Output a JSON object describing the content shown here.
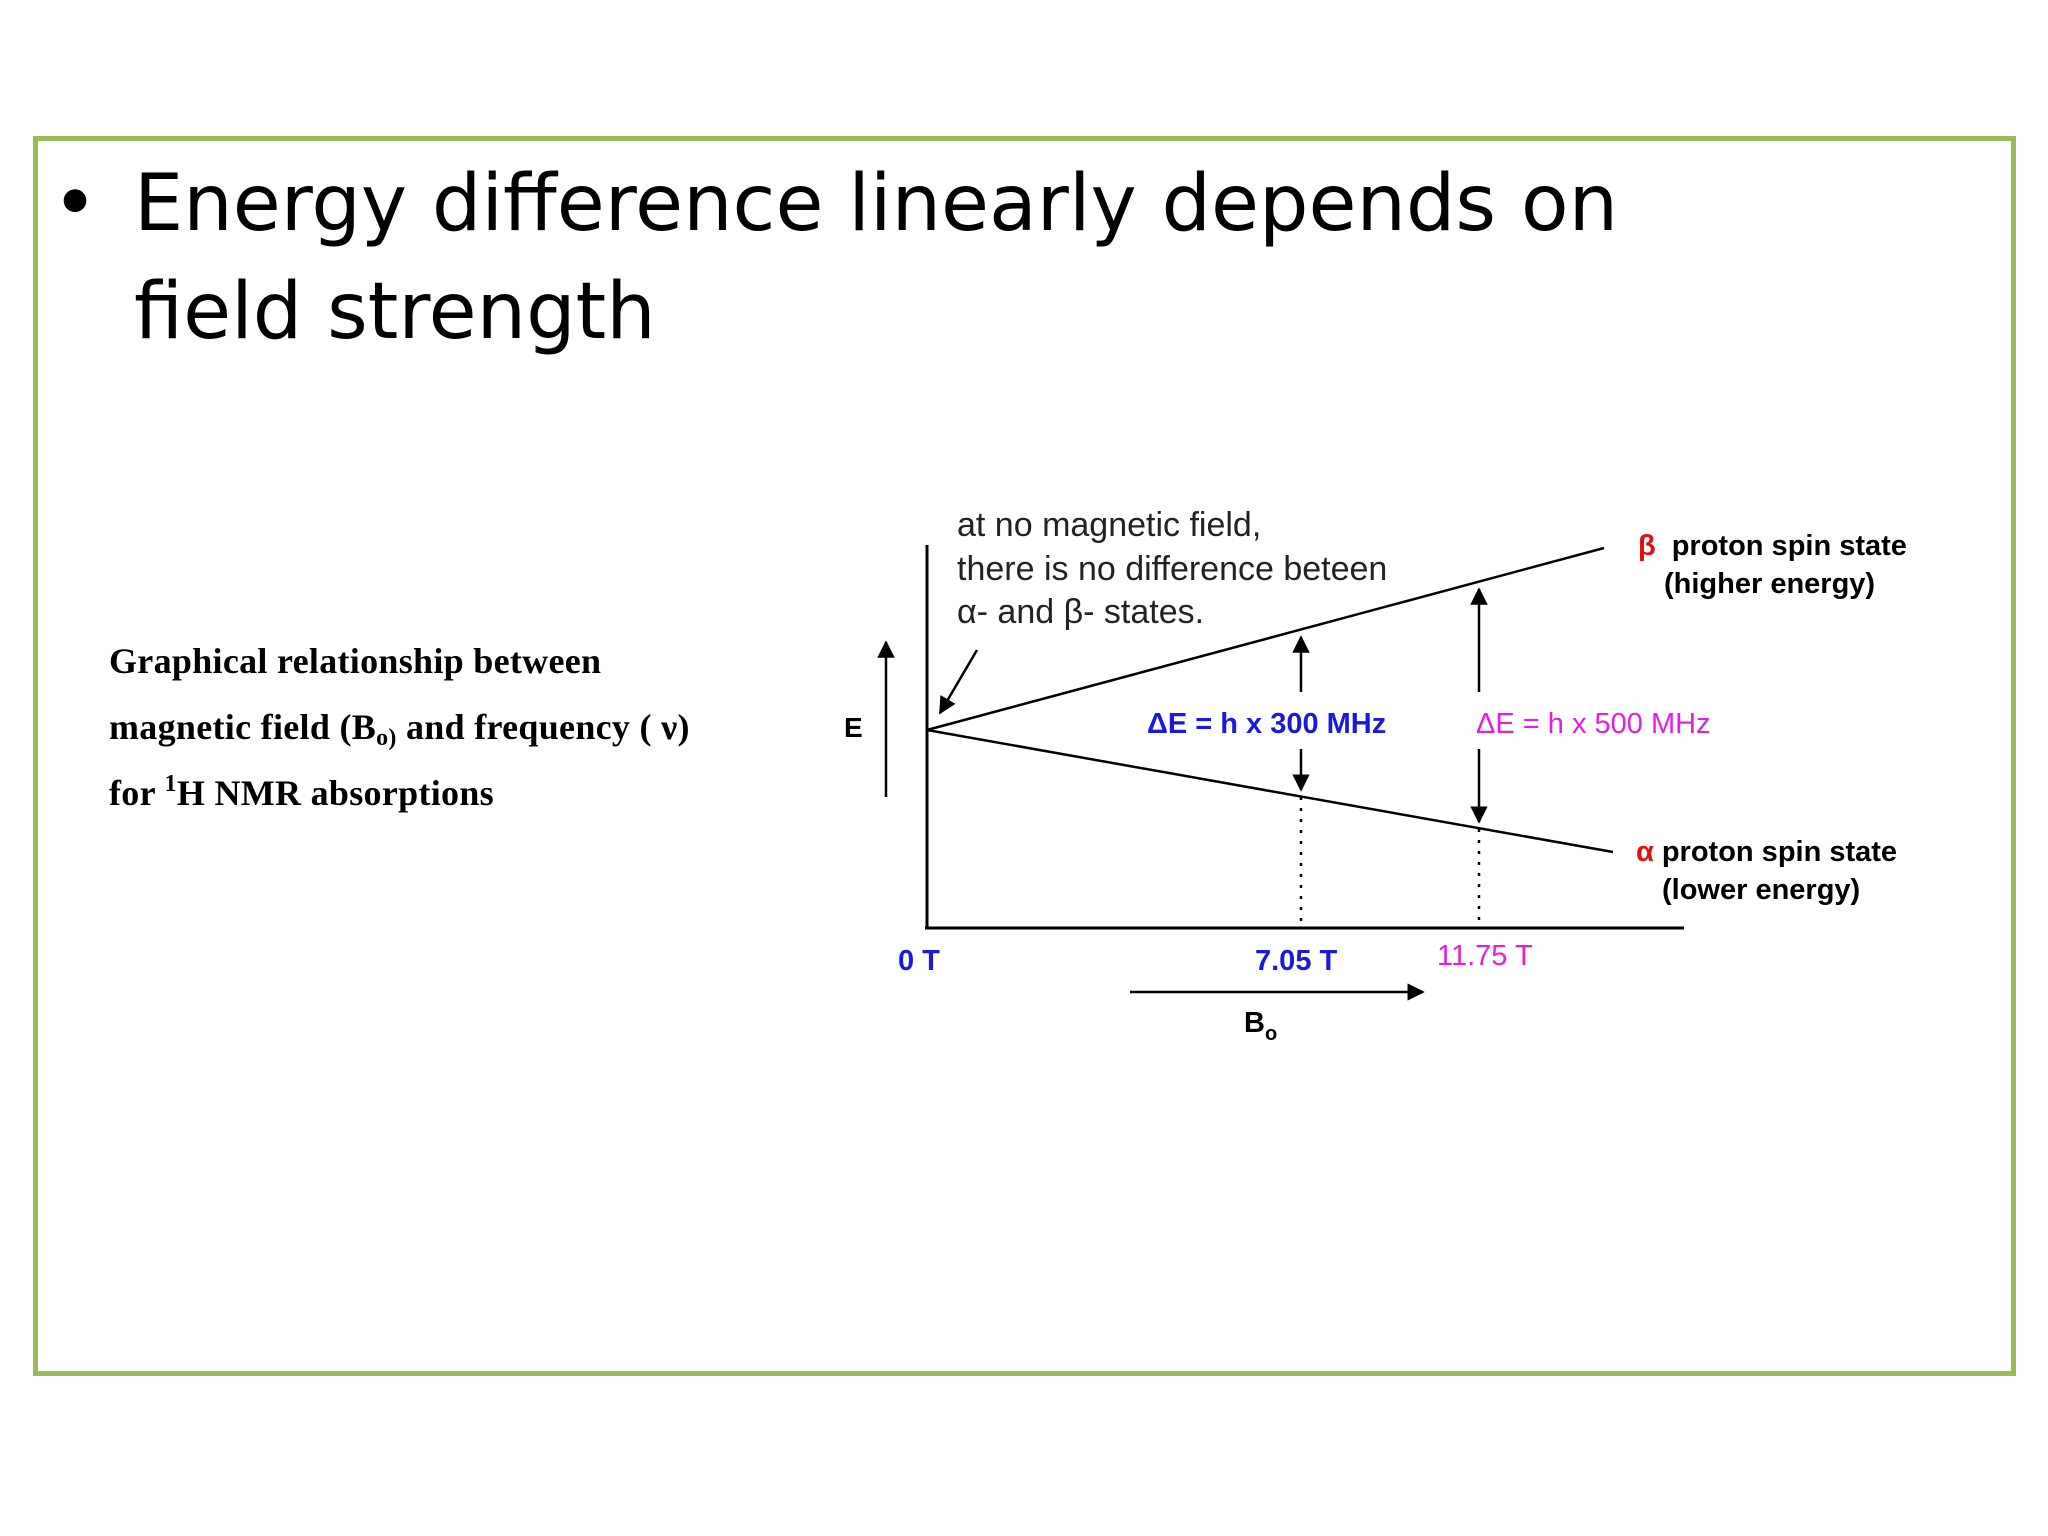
{
  "slide": {
    "bullet_symbol": "•",
    "bullet_text": "Energy difference linearly depends on field strength",
    "border_color": "#9bbb59"
  },
  "caption": {
    "line1": "Graphical relationship between",
    "line2_a": "magnetic field (B",
    "line2_sub": "o)",
    "line2_b": " and frequency ( ν)",
    "line3_a": "for ",
    "line3_sup": "1",
    "line3_b": "H NMR absorptions"
  },
  "diagram": {
    "y_axis_label": "E",
    "x_axis_label": "B",
    "x_axis_label_sub": "o",
    "annotation": {
      "line1": "at no magnetic field,",
      "line2": "there is no difference beteen",
      "line3": "α- and β- states."
    },
    "beta_state": {
      "symbol": "β",
      "label": "proton spin state",
      "sublabel": "(higher energy)"
    },
    "alpha_state": {
      "symbol": "α",
      "label": "proton spin state",
      "sublabel": "(lower energy)"
    },
    "gap_300": {
      "label": "ΔE = h x 300 MHz",
      "field": "7.05 T",
      "color": "#1a1adb"
    },
    "gap_500": {
      "label": "ΔE = h x 500 MHz",
      "field": "11.75 T",
      "color": "#e020e0"
    },
    "origin_field": "0 T",
    "symbol_color": "#e01010"
  }
}
